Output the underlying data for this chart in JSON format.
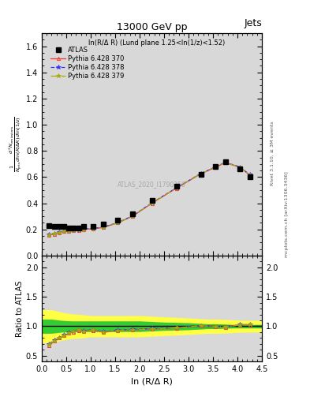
{
  "title": "13000 GeV pp",
  "title_right": "Jets",
  "plot_label": "ln(R/Δ R) (Lund plane 1.25<ln(1/z)<1.52)",
  "watermark": "ATLAS_2020_I1790256",
  "ylabel_main": "$\\frac{1}{N_{\\mathrm{jets}}}\\frac{d^2 N_{\\mathrm{emissions}}}{d\\ln (R/\\Delta R)\\,d\\ln (1/z)}$",
  "ylabel_ratio": "Ratio to ATLAS",
  "xlabel": "ln (R/Δ R)",
  "right_label1": "Rivet 3.1.10, ≥ 3M events",
  "right_label2": "mcplots.cern.ch [arXiv:1306.3436]",
  "xlim": [
    0,
    4.5
  ],
  "ylim_main": [
    0.0,
    1.7
  ],
  "ylim_ratio": [
    0.4,
    2.2
  ],
  "yticks_main": [
    0.0,
    0.2,
    0.4,
    0.6,
    0.8,
    1.0,
    1.2,
    1.4,
    1.6
  ],
  "yticks_ratio": [
    0.5,
    1.0,
    1.5,
    2.0
  ],
  "atlas_x": [
    0.15,
    0.25,
    0.35,
    0.45,
    0.55,
    0.65,
    0.75,
    0.85,
    1.05,
    1.25,
    1.55,
    1.85,
    2.25,
    2.75,
    3.25,
    3.55,
    3.75,
    4.05,
    4.25
  ],
  "atlas_y": [
    0.23,
    0.22,
    0.22,
    0.22,
    0.21,
    0.21,
    0.21,
    0.22,
    0.22,
    0.24,
    0.27,
    0.32,
    0.42,
    0.53,
    0.62,
    0.68,
    0.72,
    0.66,
    0.6
  ],
  "py370_x": [
    0.15,
    0.25,
    0.35,
    0.45,
    0.55,
    0.65,
    0.75,
    0.85,
    1.05,
    1.25,
    1.55,
    1.85,
    2.25,
    2.75,
    3.25,
    3.55,
    3.75,
    4.05,
    4.25
  ],
  "py370_y": [
    0.155,
    0.165,
    0.175,
    0.185,
    0.185,
    0.19,
    0.195,
    0.2,
    0.205,
    0.215,
    0.25,
    0.3,
    0.4,
    0.515,
    0.625,
    0.675,
    0.71,
    0.675,
    0.615
  ],
  "py378_x": [
    0.15,
    0.25,
    0.35,
    0.45,
    0.55,
    0.65,
    0.75,
    0.85,
    1.05,
    1.25,
    1.55,
    1.85,
    2.25,
    2.75,
    3.25,
    3.55,
    3.75,
    4.05,
    4.25
  ],
  "py378_y": [
    0.16,
    0.168,
    0.178,
    0.188,
    0.188,
    0.193,
    0.198,
    0.203,
    0.208,
    0.218,
    0.252,
    0.303,
    0.403,
    0.518,
    0.628,
    0.678,
    0.713,
    0.678,
    0.618
  ],
  "py379_x": [
    0.15,
    0.25,
    0.35,
    0.45,
    0.55,
    0.65,
    0.75,
    0.85,
    1.05,
    1.25,
    1.55,
    1.85,
    2.25,
    2.75,
    3.25,
    3.55,
    3.75,
    4.05,
    4.25
  ],
  "py379_y": [
    0.158,
    0.166,
    0.176,
    0.186,
    0.186,
    0.191,
    0.196,
    0.201,
    0.206,
    0.216,
    0.25,
    0.301,
    0.401,
    0.516,
    0.626,
    0.676,
    0.711,
    0.676,
    0.616
  ],
  "ratio370_y": [
    0.67,
    0.75,
    0.8,
    0.84,
    0.88,
    0.905,
    0.928,
    0.91,
    0.932,
    0.896,
    0.926,
    0.938,
    0.952,
    0.972,
    1.008,
    0.993,
    0.986,
    1.023,
    1.025
  ],
  "ratio378_y": [
    0.7,
    0.765,
    0.81,
    0.855,
    0.895,
    0.919,
    0.943,
    0.923,
    0.945,
    0.908,
    0.933,
    0.947,
    0.96,
    0.978,
    1.013,
    0.997,
    0.99,
    1.027,
    1.03
  ],
  "ratio379_y": [
    0.688,
    0.755,
    0.8,
    0.845,
    0.885,
    0.91,
    0.933,
    0.914,
    0.936,
    0.9,
    0.926,
    0.939,
    0.953,
    0.974,
    1.01,
    0.994,
    0.987,
    1.024,
    1.027
  ],
  "band_x": [
    0.0,
    0.2,
    0.4,
    0.6,
    0.8,
    1.0,
    1.4,
    1.7,
    2.0,
    2.5,
    3.0,
    3.4,
    3.6,
    3.9,
    4.15,
    4.5
  ],
  "band_green_lo": [
    0.88,
    0.88,
    0.9,
    0.91,
    0.91,
    0.91,
    0.91,
    0.91,
    0.91,
    0.93,
    0.94,
    0.96,
    0.96,
    0.97,
    0.97,
    0.97
  ],
  "band_green_hi": [
    1.12,
    1.12,
    1.1,
    1.09,
    1.09,
    1.09,
    1.09,
    1.09,
    1.09,
    1.07,
    1.06,
    1.04,
    1.04,
    1.03,
    1.03,
    1.03
  ],
  "band_yellow_lo": [
    0.72,
    0.72,
    0.76,
    0.79,
    0.8,
    0.82,
    0.82,
    0.82,
    0.82,
    0.84,
    0.86,
    0.88,
    0.88,
    0.89,
    0.9,
    0.9
  ],
  "band_yellow_hi": [
    1.28,
    1.28,
    1.24,
    1.21,
    1.2,
    1.18,
    1.18,
    1.18,
    1.18,
    1.16,
    1.14,
    1.12,
    1.12,
    1.11,
    1.1,
    1.1
  ],
  "color_py370": "#ff3333",
  "color_py378": "#3333ff",
  "color_py379": "#aaaa00",
  "color_atlas": "black",
  "color_green": "#33cc33",
  "color_yellow": "#ffff44",
  "bg_color": "#d8d8d8"
}
